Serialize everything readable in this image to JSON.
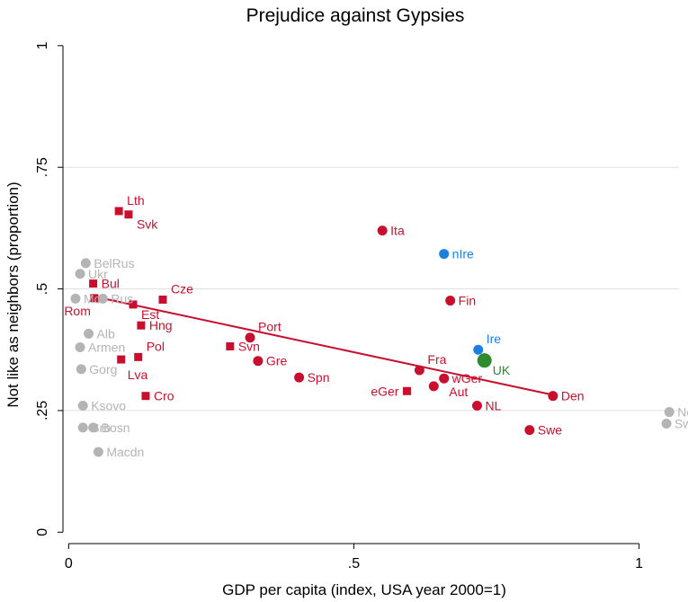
{
  "chart_data": {
    "type": "scatter",
    "title": "Prejudice against Gypsies",
    "xlabel": "GDP per capita (index, USA year 2000=1)",
    "ylabel": "Not like as neighbors (proportion)",
    "xlim": [
      -0.01,
      1.07
    ],
    "ylim": [
      -0.005,
      1.02
    ],
    "xticks": [
      {
        "value": 0,
        "label": "0"
      },
      {
        "value": 0.5,
        "label": ".5"
      },
      {
        "value": 1,
        "label": "1"
      }
    ],
    "yticks": [
      {
        "value": 0,
        "label": "0"
      },
      {
        "value": 0.25,
        "label": ".25"
      },
      {
        "value": 0.5,
        "label": ".5"
      },
      {
        "value": 0.75,
        "label": ".75"
      },
      {
        "value": 1,
        "label": "1"
      }
    ],
    "gridlines": [
      0.25,
      0.5,
      0.75
    ],
    "colors": {
      "red": "#c8102e",
      "gray": "#b4b4b4",
      "blue": "#1f7fe0",
      "green": "#2e8b2e",
      "axis": "#000000",
      "grid": "#e0e0e0"
    },
    "fit_line": {
      "x1": 0.05,
      "y1": 0.483,
      "x2": 0.85,
      "y2": 0.282
    },
    "points": [
      {
        "label": "Lth",
        "x": 0.088,
        "y": 0.66,
        "marker": "square",
        "color": "red",
        "label_pos": "right-up"
      },
      {
        "label": "Svk",
        "x": 0.105,
        "y": 0.653,
        "marker": "square",
        "color": "red",
        "label_pos": "right-down"
      },
      {
        "label": "Bul",
        "x": 0.043,
        "y": 0.511,
        "marker": "square",
        "color": "red",
        "label_pos": "right"
      },
      {
        "label": "Rom",
        "x": 0.045,
        "y": 0.481,
        "marker": "square",
        "color": "red",
        "label_pos": "below-left"
      },
      {
        "label": "Cze",
        "x": 0.165,
        "y": 0.478,
        "marker": "square",
        "color": "red",
        "label_pos": "right-up"
      },
      {
        "label": "Est",
        "x": 0.113,
        "y": 0.468,
        "marker": "square",
        "color": "red",
        "label_pos": "right-down"
      },
      {
        "label": "Hng",
        "x": 0.127,
        "y": 0.425,
        "marker": "square",
        "color": "red",
        "label_pos": "right"
      },
      {
        "label": "Svn",
        "x": 0.283,
        "y": 0.382,
        "marker": "square",
        "color": "red",
        "label_pos": "right"
      },
      {
        "label": "Pol",
        "x": 0.122,
        "y": 0.36,
        "marker": "square",
        "color": "red",
        "label_pos": "right-up"
      },
      {
        "label": "Lva",
        "x": 0.092,
        "y": 0.355,
        "marker": "square",
        "color": "red",
        "label_pos": "below-right"
      },
      {
        "label": "Cro",
        "x": 0.135,
        "y": 0.28,
        "marker": "square",
        "color": "red",
        "label_pos": "right"
      },
      {
        "label": "eGer",
        "x": 0.593,
        "y": 0.29,
        "marker": "square",
        "color": "red",
        "label_pos": "left"
      },
      {
        "label": "Ita",
        "x": 0.55,
        "y": 0.62,
        "marker": "circle",
        "color": "red",
        "label_pos": "right"
      },
      {
        "label": "Fin",
        "x": 0.669,
        "y": 0.476,
        "marker": "circle",
        "color": "red",
        "label_pos": "right"
      },
      {
        "label": "Port",
        "x": 0.318,
        "y": 0.4,
        "marker": "circle",
        "color": "red",
        "label_pos": "right-up"
      },
      {
        "label": "Gre",
        "x": 0.332,
        "y": 0.352,
        "marker": "circle",
        "color": "red",
        "label_pos": "right"
      },
      {
        "label": "Spn",
        "x": 0.404,
        "y": 0.318,
        "marker": "circle",
        "color": "red",
        "label_pos": "right"
      },
      {
        "label": "Fra",
        "x": 0.615,
        "y": 0.333,
        "marker": "circle",
        "color": "red",
        "label_pos": "right-up"
      },
      {
        "label": "wGer",
        "x": 0.658,
        "y": 0.316,
        "marker": "circle",
        "color": "red",
        "label_pos": "right"
      },
      {
        "label": "Aut",
        "x": 0.64,
        "y": 0.3,
        "marker": "circle",
        "color": "red",
        "label_pos": "far-right-down"
      },
      {
        "label": "NL",
        "x": 0.716,
        "y": 0.26,
        "marker": "circle",
        "color": "red",
        "label_pos": "right"
      },
      {
        "label": "Den",
        "x": 0.849,
        "y": 0.28,
        "marker": "circle",
        "color": "red",
        "label_pos": "right"
      },
      {
        "label": "Swe",
        "x": 0.808,
        "y": 0.21,
        "marker": "circle",
        "color": "red",
        "label_pos": "right"
      },
      {
        "label": "nIre",
        "x": 0.658,
        "y": 0.572,
        "marker": "circle",
        "color": "blue",
        "label_pos": "right"
      },
      {
        "label": "Ire",
        "x": 0.718,
        "y": 0.375,
        "marker": "circle",
        "color": "blue",
        "label_pos": "right-up"
      },
      {
        "label": "UK",
        "x": 0.729,
        "y": 0.353,
        "marker": "big-circle",
        "color": "green",
        "label_pos": "right-down"
      },
      {
        "label": "BelRus",
        "x": 0.03,
        "y": 0.553,
        "marker": "circle",
        "color": "gray",
        "label_pos": "right"
      },
      {
        "label": "Ukr",
        "x": 0.02,
        "y": 0.531,
        "marker": "circle",
        "color": "gray",
        "label_pos": "right"
      },
      {
        "label": "Mol",
        "x": 0.012,
        "y": 0.48,
        "marker": "circle",
        "color": "gray",
        "label_pos": "right"
      },
      {
        "label": "Rus",
        "x": 0.06,
        "y": 0.48,
        "marker": "circle",
        "color": "gray",
        "label_pos": "right"
      },
      {
        "label": "Alb",
        "x": 0.035,
        "y": 0.408,
        "marker": "circle",
        "color": "gray",
        "label_pos": "right"
      },
      {
        "label": "Armen",
        "x": 0.02,
        "y": 0.38,
        "marker": "circle",
        "color": "gray",
        "label_pos": "right"
      },
      {
        "label": "Gorg",
        "x": 0.022,
        "y": 0.335,
        "marker": "circle",
        "color": "gray",
        "label_pos": "right"
      },
      {
        "label": "Ksovo",
        "x": 0.025,
        "y": 0.26,
        "marker": "circle",
        "color": "gray",
        "label_pos": "right"
      },
      {
        "label": "Srb",
        "x": 0.025,
        "y": 0.215,
        "marker": "circle",
        "color": "gray",
        "label_pos": "right"
      },
      {
        "label": "Bosn",
        "x": 0.043,
        "y": 0.215,
        "marker": "circle",
        "color": "gray",
        "label_pos": "right"
      },
      {
        "label": "Macdn",
        "x": 0.052,
        "y": 0.165,
        "marker": "circle",
        "color": "gray",
        "label_pos": "right"
      },
      {
        "label": "Nor",
        "x": 1.053,
        "y": 0.247,
        "marker": "circle",
        "color": "gray",
        "label_pos": "right"
      },
      {
        "label": "Swz",
        "x": 1.048,
        "y": 0.223,
        "marker": "circle",
        "color": "gray",
        "label_pos": "right"
      }
    ]
  }
}
